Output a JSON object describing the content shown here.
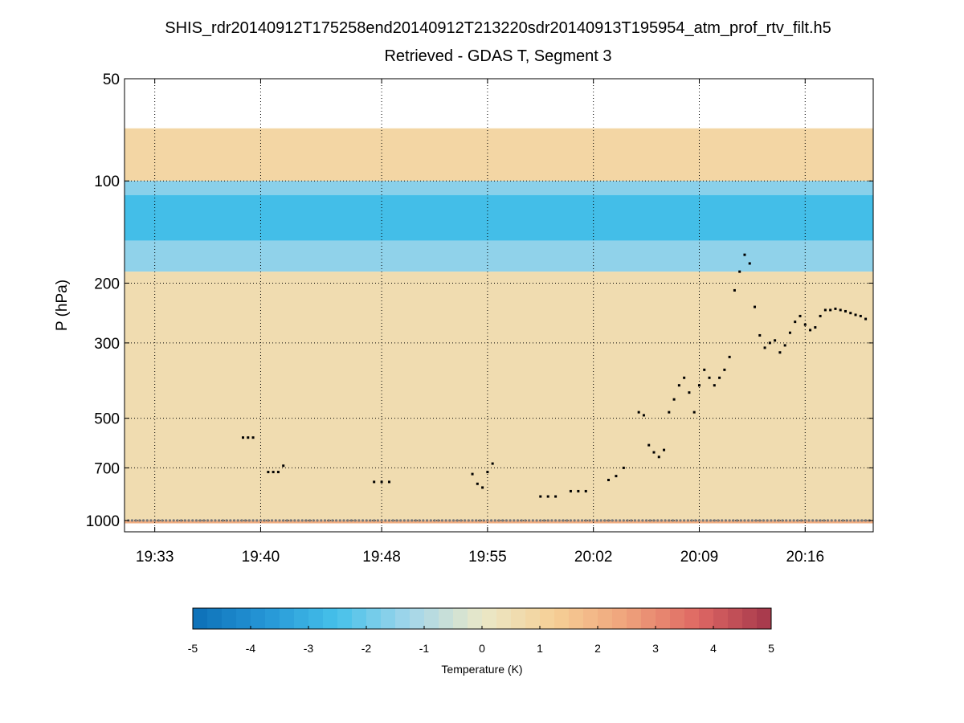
{
  "chart_data": {
    "type": "heatmap",
    "title": "SHIS_rdr20140912T175258end20140912T213220sdr20140913T195954_atm_prof_rtv_filt.h5",
    "subtitle": "Retrieved - GDAS T, Segment 3",
    "xlabel": "",
    "ylabel": "P (hPa)",
    "yscale": "log",
    "yaxis_reversed": true,
    "xlim": [
      "19:31:00",
      "20:20:30"
    ],
    "ylim": [
      50,
      1080
    ],
    "x_ticks": [
      "19:33",
      "19:40",
      "19:48",
      "19:55",
      "20:02",
      "20:09",
      "20:16"
    ],
    "y_ticks": [
      50,
      100,
      200,
      300,
      500,
      700,
      1000
    ],
    "colorbar": {
      "label": "Temperature (K)",
      "range": [
        -5,
        5
      ],
      "ticks": [
        -5,
        -4,
        -3,
        -2,
        -1,
        0,
        1,
        2,
        3,
        4,
        5
      ],
      "colors": [
        "#0c6fb7",
        "#2596d6",
        "#46c1ea",
        "#a3d6ea",
        "#eae8c8",
        "#f6cf96",
        "#efa27b",
        "#de6763",
        "#a3364a"
      ]
    },
    "field_summary": [
      {
        "p_top": 70,
        "p_bottom": 100,
        "value": 0.9
      },
      {
        "p_top": 100,
        "p_bottom": 110,
        "value": -1.6
      },
      {
        "p_top": 110,
        "p_bottom": 150,
        "value": -2.6
      },
      {
        "p_top": 150,
        "p_bottom": 185,
        "value": -1.5
      },
      {
        "p_top": 185,
        "p_bottom": 1000,
        "value": 0.6
      },
      {
        "p_top": 1000,
        "p_bottom": 1020,
        "value": 2.2
      }
    ],
    "cloud_top_markers": [
      {
        "t": "19:38:50",
        "p": 570
      },
      {
        "t": "19:39:10",
        "p": 570
      },
      {
        "t": "19:39:30",
        "p": 570
      },
      {
        "t": "19:40:30",
        "p": 720
      },
      {
        "t": "19:40:50",
        "p": 720
      },
      {
        "t": "19:41:10",
        "p": 720
      },
      {
        "t": "19:41:30",
        "p": 690
      },
      {
        "t": "19:47:30",
        "p": 770
      },
      {
        "t": "19:48:00",
        "p": 770
      },
      {
        "t": "19:48:30",
        "p": 770
      },
      {
        "t": "19:54:00",
        "p": 730
      },
      {
        "t": "19:54:20",
        "p": 780
      },
      {
        "t": "19:54:40",
        "p": 800
      },
      {
        "t": "19:55:00",
        "p": 720
      },
      {
        "t": "19:55:20",
        "p": 680
      },
      {
        "t": "19:58:30",
        "p": 850
      },
      {
        "t": "19:59:00",
        "p": 850
      },
      {
        "t": "19:59:30",
        "p": 850
      },
      {
        "t": "20:00:30",
        "p": 820
      },
      {
        "t": "20:01:00",
        "p": 820
      },
      {
        "t": "20:01:30",
        "p": 820
      },
      {
        "t": "20:03:00",
        "p": 760
      },
      {
        "t": "20:03:30",
        "p": 740
      },
      {
        "t": "20:04:00",
        "p": 700
      },
      {
        "t": "20:05:00",
        "p": 480
      },
      {
        "t": "20:05:20",
        "p": 490
      },
      {
        "t": "20:05:40",
        "p": 600
      },
      {
        "t": "20:06:00",
        "p": 630
      },
      {
        "t": "20:06:20",
        "p": 650
      },
      {
        "t": "20:06:40",
        "p": 620
      },
      {
        "t": "20:07:00",
        "p": 480
      },
      {
        "t": "20:07:20",
        "p": 440
      },
      {
        "t": "20:07:40",
        "p": 400
      },
      {
        "t": "20:08:00",
        "p": 380
      },
      {
        "t": "20:08:20",
        "p": 420
      },
      {
        "t": "20:08:40",
        "p": 480
      },
      {
        "t": "20:09:00",
        "p": 400
      },
      {
        "t": "20:09:20",
        "p": 360
      },
      {
        "t": "20:09:40",
        "p": 380
      },
      {
        "t": "20:10:00",
        "p": 400
      },
      {
        "t": "20:10:20",
        "p": 380
      },
      {
        "t": "20:10:40",
        "p": 360
      },
      {
        "t": "20:11:00",
        "p": 330
      },
      {
        "t": "20:11:20",
        "p": 210
      },
      {
        "t": "20:11:40",
        "p": 185
      },
      {
        "t": "20:12:00",
        "p": 165
      },
      {
        "t": "20:12:20",
        "p": 175
      },
      {
        "t": "20:12:40",
        "p": 235
      },
      {
        "t": "20:13:00",
        "p": 285
      },
      {
        "t": "20:13:20",
        "p": 310
      },
      {
        "t": "20:13:40",
        "p": 300
      },
      {
        "t": "20:14:00",
        "p": 295
      },
      {
        "t": "20:14:20",
        "p": 320
      },
      {
        "t": "20:14:40",
        "p": 305
      },
      {
        "t": "20:15:00",
        "p": 280
      },
      {
        "t": "20:15:20",
        "p": 260
      },
      {
        "t": "20:15:40",
        "p": 250
      },
      {
        "t": "20:16:00",
        "p": 265
      },
      {
        "t": "20:16:20",
        "p": 275
      },
      {
        "t": "20:16:40",
        "p": 270
      },
      {
        "t": "20:17:00",
        "p": 250
      },
      {
        "t": "20:17:20",
        "p": 240
      },
      {
        "t": "20:17:40",
        "p": 240
      },
      {
        "t": "20:18:00",
        "p": 238
      },
      {
        "t": "20:18:20",
        "p": 240
      },
      {
        "t": "20:18:40",
        "p": 242
      },
      {
        "t": "20:19:00",
        "p": 245
      },
      {
        "t": "20:19:20",
        "p": 248
      },
      {
        "t": "20:19:40",
        "p": 250
      },
      {
        "t": "20:20:00",
        "p": 255
      }
    ],
    "surface_pressure": 1000,
    "grid": true
  }
}
